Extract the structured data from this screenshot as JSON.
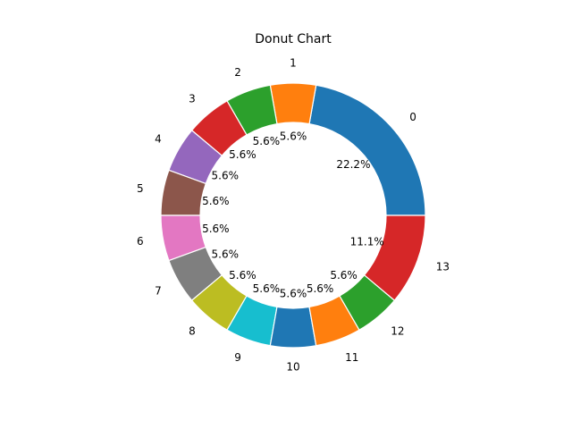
{
  "chart_data": {
    "type": "pie",
    "title": "Donut Chart",
    "categories": [
      "0",
      "1",
      "2",
      "3",
      "4",
      "5",
      "6",
      "7",
      "8",
      "9",
      "10",
      "11",
      "12",
      "13"
    ],
    "values": [
      4,
      1,
      1,
      1,
      1,
      1,
      1,
      1,
      1,
      1,
      1,
      1,
      1,
      2
    ],
    "percent_labels": [
      "22.2%",
      "5.6%",
      "5.6%",
      "5.6%",
      "5.6%",
      "5.6%",
      "5.6%",
      "5.6%",
      "5.6%",
      "5.6%",
      "5.6%",
      "5.6%",
      "5.6%",
      "11.1%"
    ],
    "colors": [
      "#1f77b4",
      "#ff7f0e",
      "#2ca02c",
      "#d62728",
      "#9467bd",
      "#8c564b",
      "#e377c2",
      "#7f7f7f",
      "#bcbd22",
      "#17becf",
      "#1f77b4",
      "#ff7f0e",
      "#2ca02c",
      "#d62728"
    ],
    "start_angle_deg": 0,
    "direction": "counterclockwise",
    "hole": true
  }
}
